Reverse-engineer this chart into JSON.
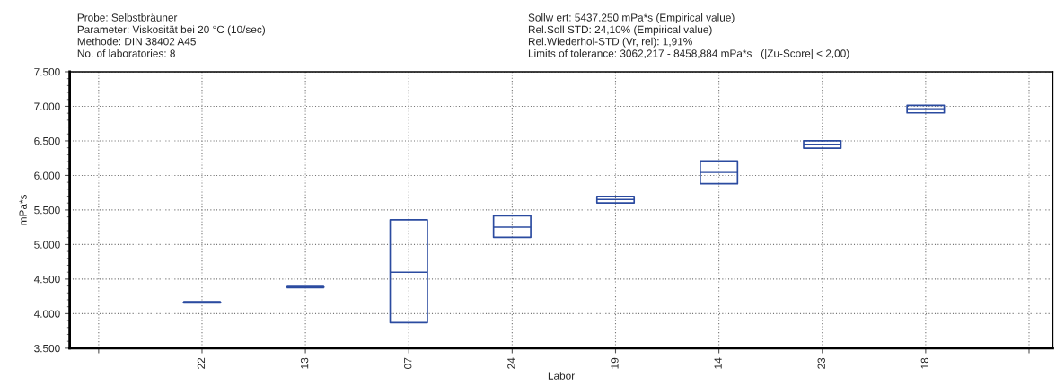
{
  "chart_data": {
    "type": "box",
    "title": "Probe: Selbstbräuner",
    "annotations": [
      "Parameter: Viskosität bei 20 °C (10/sec)",
      "Methode: DIN 38402 A45",
      "No. of laboratories: 8",
      "Sollw ert: 5437,250 mPa*s (Empirical value)",
      "Rel.Soll STD: 24,10% (Empirical value)",
      "Rel.Wiederhol-STD (Vr, rel): 1,91%",
      "Limits of tolerance: 3062,217 - 8458,884 mPa*s   (|Zu-Score| < 2,00)"
    ],
    "xlabel": "Labor",
    "ylabel": "mPa*s",
    "categories": [
      null,
      "22",
      "13",
      "07",
      "24",
      "19",
      "14",
      "23",
      "18",
      null
    ],
    "color": "#2b4ba0",
    "boxes": [
      null,
      {
        "low": 4165,
        "q1": 4165,
        "median": 4165,
        "q3": 4165,
        "high": 4165
      },
      {
        "low": 4385,
        "q1": 4385,
        "median": 4385,
        "q3": 4385,
        "high": 4385
      },
      {
        "low": 3870,
        "q1": 3870,
        "median": 4600,
        "q3": 5357,
        "high": 5357
      },
      {
        "low": 5104,
        "q1": 5104,
        "median": 5252,
        "q3": 5417,
        "high": 5417
      },
      {
        "low": 5601,
        "q1": 5601,
        "median": 5651,
        "q3": 5695,
        "high": 5695
      },
      {
        "low": 5880,
        "q1": 5880,
        "median": 6043,
        "q3": 6208,
        "high": 6208
      },
      {
        "low": 6393,
        "q1": 6393,
        "median": 6452,
        "q3": 6501,
        "high": 6501
      },
      {
        "low": 6905,
        "q1": 6905,
        "median": 6965,
        "q3": 7014,
        "high": 7014
      },
      null
    ],
    "ylim": [
      3500,
      7500
    ],
    "yticks": [
      {
        "value": 3500,
        "label": "3.500"
      },
      {
        "value": 4000,
        "label": "4.000"
      },
      {
        "value": 4500,
        "label": "4.500"
      },
      {
        "value": 5000,
        "label": "5.000"
      },
      {
        "value": 5500,
        "label": "5.500"
      },
      {
        "value": 6000,
        "label": "6.000"
      },
      {
        "value": 6500,
        "label": "6.500"
      },
      {
        "value": 7000,
        "label": "7.000"
      },
      {
        "value": 7500,
        "label": "7.500"
      }
    ],
    "grid": true
  }
}
